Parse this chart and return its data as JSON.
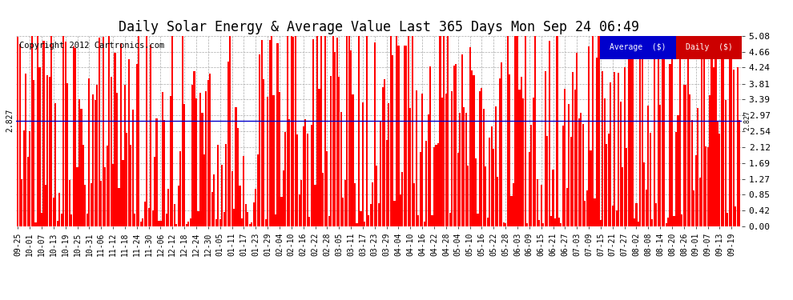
{
  "title": "Daily Solar Energy & Average Value Last 365 Days Mon Sep 24 06:49",
  "copyright": "Copyright 2012 Cartronics.com",
  "average_value": 2.827,
  "ylim": [
    0.0,
    5.08
  ],
  "yticks": [
    0.0,
    0.42,
    0.85,
    1.27,
    1.69,
    2.12,
    2.54,
    2.97,
    3.39,
    3.81,
    4.24,
    4.66,
    5.08
  ],
  "bar_color": "#ff0000",
  "avg_line_color": "#0000cc",
  "background_color": "#ffffff",
  "grid_color": "#aaaaaa",
  "legend_avg_bg": "#0000cc",
  "legend_daily_bg": "#cc0000",
  "legend_text_color": "#ffffff",
  "title_fontsize": 12,
  "num_bars": 365,
  "x_tick_labels": [
    "09-25",
    "10-01",
    "10-07",
    "10-13",
    "10-19",
    "10-25",
    "10-31",
    "11-06",
    "11-12",
    "11-18",
    "11-24",
    "11-30",
    "12-06",
    "12-12",
    "12-18",
    "12-24",
    "12-30",
    "01-05",
    "01-11",
    "01-17",
    "01-23",
    "01-29",
    "02-04",
    "02-10",
    "02-16",
    "02-22",
    "02-28",
    "03-05",
    "03-11",
    "03-17",
    "03-23",
    "03-29",
    "04-04",
    "04-10",
    "04-16",
    "04-22",
    "04-28",
    "05-04",
    "05-10",
    "05-16",
    "05-22",
    "05-28",
    "06-03",
    "06-09",
    "06-15",
    "06-21",
    "06-27",
    "07-03",
    "07-09",
    "07-15",
    "07-21",
    "07-27",
    "08-02",
    "08-08",
    "08-14",
    "08-20",
    "08-26",
    "09-01",
    "09-07",
    "09-13",
    "09-19"
  ],
  "x_tick_positions": [
    0,
    6,
    12,
    18,
    24,
    30,
    36,
    42,
    48,
    54,
    60,
    66,
    72,
    78,
    84,
    90,
    96,
    102,
    108,
    114,
    120,
    126,
    132,
    138,
    144,
    150,
    156,
    162,
    168,
    174,
    180,
    186,
    192,
    198,
    204,
    210,
    216,
    222,
    228,
    234,
    240,
    246,
    252,
    258,
    264,
    270,
    276,
    282,
    288,
    294,
    300,
    306,
    312,
    318,
    324,
    330,
    336,
    342,
    348,
    354,
    360
  ]
}
